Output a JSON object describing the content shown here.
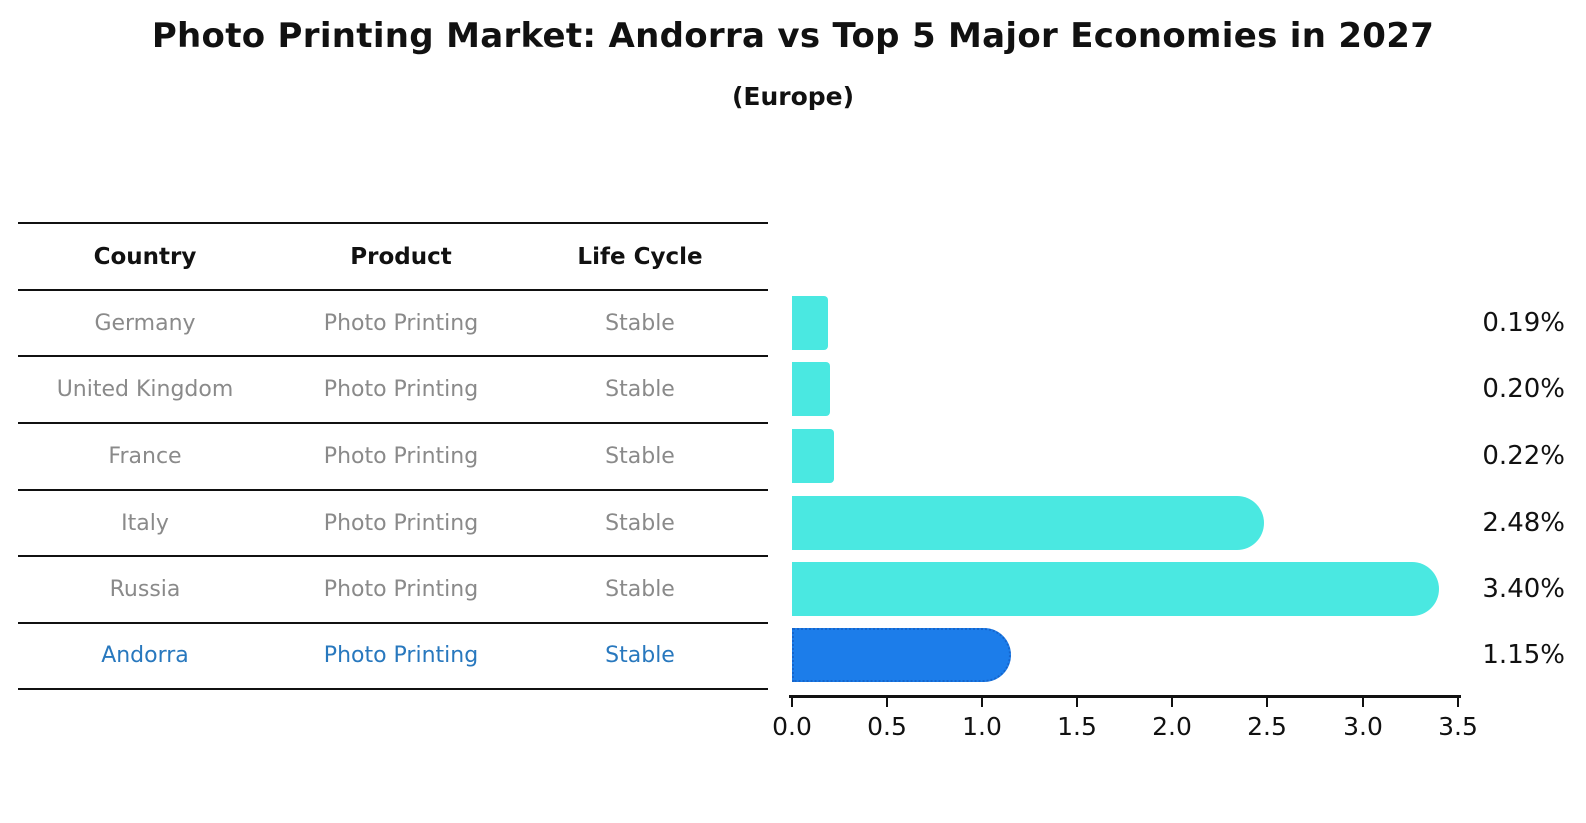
{
  "title": "Photo Printing Market: Andorra vs Top 5 Major Economies in 2027",
  "subtitle": "(Europe)",
  "table": {
    "headers": {
      "country": "Country",
      "product": "Product",
      "life_cycle": "Life Cycle"
    },
    "rows": [
      {
        "country": "Germany",
        "product": "Photo Printing",
        "life_cycle": "Stable",
        "highlight": false
      },
      {
        "country": "United Kingdom",
        "product": "Photo Printing",
        "life_cycle": "Stable",
        "highlight": false
      },
      {
        "country": "France",
        "product": "Photo Printing",
        "life_cycle": "Stable",
        "highlight": false
      },
      {
        "country": "Italy",
        "product": "Photo Printing",
        "life_cycle": "Stable",
        "highlight": false
      },
      {
        "country": "Russia",
        "product": "Photo Printing",
        "life_cycle": "Stable",
        "highlight": false
      },
      {
        "country": "Andorra",
        "product": "Photo Printing",
        "life_cycle": "Stable",
        "highlight": true
      }
    ]
  },
  "chart_data": {
    "type": "bar",
    "orientation": "horizontal",
    "title": "Photo Printing Market: Andorra vs Top 5 Major Economies in 2027",
    "subtitle": "(Europe)",
    "categories": [
      "Germany",
      "United Kingdom",
      "France",
      "Italy",
      "Russia",
      "Andorra"
    ],
    "values": [
      0.19,
      0.2,
      0.22,
      2.48,
      3.4,
      1.15
    ],
    "value_labels": [
      "0.19%",
      "0.20%",
      "0.22%",
      "2.48%",
      "3.40%",
      "1.15%"
    ],
    "unit": "%",
    "xlim": [
      0.0,
      3.5
    ],
    "xticks": [
      "0.0",
      "0.5",
      "1.0",
      "1.5",
      "2.0",
      "2.5",
      "3.0",
      "3.5"
    ],
    "grid": false,
    "legend": false,
    "highlight_category": "Andorra",
    "colors": {
      "bar": "#4AE8E1",
      "highlight_bar": "#1C7DEA",
      "highlight_border": "#1565CC",
      "highlight_text": "#2878BE",
      "row_text": "#8A8A8A",
      "text": "#111111"
    }
  }
}
